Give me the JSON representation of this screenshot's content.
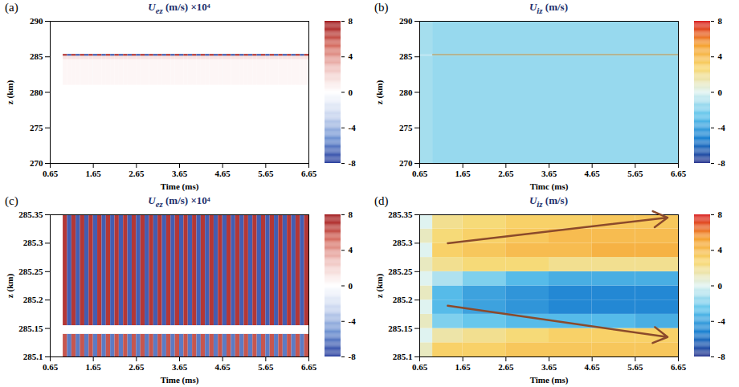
{
  "chart_data": [
    {
      "type": "heatmap",
      "panel_label": "(a)",
      "title": "Uez (m/s) ×10⁴",
      "x_label": "Time (ms)",
      "y_label": "z (km)",
      "xlim": [
        0.65,
        6.65
      ],
      "xticks": [
        0.65,
        1.65,
        2.65,
        3.65,
        4.65,
        5.65,
        6.65
      ],
      "ylim": [
        270,
        290
      ],
      "yticks": [
        270,
        275,
        280,
        285,
        290
      ],
      "color": "bwr",
      "colorbar": {
        "lim": [
          -8,
          8
        ],
        "ticks": [
          -8,
          -4,
          0,
          4,
          8
        ]
      },
      "cells": {
        "x_edges": [
          0.65,
          0.95,
          1.05,
          1.15,
          1.25,
          1.35,
          1.45,
          1.55,
          1.65,
          1.75,
          1.85,
          1.95,
          2.05,
          2.15,
          2.25,
          2.35,
          2.45,
          2.55,
          2.65,
          2.75,
          2.85,
          2.95,
          3.05,
          3.15,
          3.25,
          3.35,
          3.45,
          3.55,
          3.65,
          3.75,
          3.85,
          3.95,
          4.05,
          4.15,
          4.25,
          4.35,
          4.45,
          4.55,
          4.65,
          4.75,
          4.85,
          4.95,
          5.05,
          5.15,
          5.25,
          5.35,
          5.45,
          5.55,
          5.65,
          5.75,
          5.85,
          5.95,
          6.05,
          6.15,
          6.25,
          6.35,
          6.45,
          6.55,
          6.65
        ],
        "y_edges": [
          281,
          284.6,
          285.1,
          285.35
        ],
        "values": [
          [
            0,
            0.4,
            0.4,
            0.4,
            0.4,
            0.4,
            0.4,
            0.4,
            0.4,
            0.4,
            0.4,
            0.4,
            0.4,
            0.4,
            0.4,
            0.4,
            0.4,
            0.4,
            0.4,
            0.4,
            0.4,
            0.4,
            0.4,
            0.4,
            0.4,
            0.4,
            0.4,
            0.4,
            0.4,
            0.4,
            0.4,
            0.4,
            0.4,
            0.4,
            0.4,
            0.4,
            0.4,
            0.4,
            0.4,
            0.4,
            0.4,
            0.4,
            0.4,
            0.4,
            0.4,
            0.4,
            0.4,
            0.4,
            0.4,
            0.4,
            0.4,
            0.4,
            0.4,
            0.4,
            0.4,
            0.4,
            0.4,
            0.4
          ],
          [
            0,
            1.2,
            1.2,
            1.2,
            1.2,
            1.2,
            1.2,
            1.2,
            1.2,
            1.2,
            1.2,
            1.2,
            1.2,
            1.2,
            1.2,
            1.2,
            1.2,
            1.2,
            1.2,
            1.2,
            1.2,
            1.2,
            1.2,
            1.2,
            1.2,
            1.2,
            1.2,
            1.2,
            1.2,
            1.2,
            1.2,
            1.2,
            1.2,
            1.2,
            1.2,
            1.2,
            1.2,
            1.2,
            1.2,
            1.2,
            1.2,
            1.2,
            1.2,
            1.2,
            1.2,
            1.2,
            1.2,
            1.2,
            1.2,
            1.2,
            1.2,
            1.2,
            1.2,
            1.2,
            1.2,
            1.2,
            1.2,
            1.2
          ],
          [
            0,
            7,
            -7,
            7,
            -7,
            7,
            -7,
            7,
            -7,
            7,
            -7,
            7,
            -7,
            7,
            -7,
            7,
            -7,
            7,
            -7,
            7,
            -7,
            7,
            -7,
            7,
            -7,
            7,
            -7,
            7,
            -7,
            7,
            -7,
            7,
            -7,
            7,
            -7,
            7,
            -7,
            7,
            -7,
            7,
            -7,
            7,
            -7,
            7,
            -7,
            7,
            -7,
            7,
            -7,
            7,
            -7,
            7,
            -7,
            7,
            -7,
            7,
            -7,
            7
          ]
        ]
      }
    },
    {
      "type": "heatmap",
      "panel_label": "(b)",
      "title": "Uiz (m/s)",
      "x_label": "Timc (ms)",
      "y_label": "z (km)",
      "xlim": [
        0.65,
        6.65
      ],
      "xticks": [
        0.65,
        1.65,
        2.65,
        3.65,
        4.65,
        5.65,
        6.65
      ],
      "ylim": [
        270,
        290
      ],
      "yticks": [
        270,
        275,
        280,
        285,
        290
      ],
      "color": "jet",
      "colorbar": {
        "lim": [
          -8,
          8
        ],
        "ticks": [
          -8,
          -4,
          0,
          4,
          8
        ]
      },
      "cells": {
        "x_edges": [
          0.65,
          0.95,
          6.65
        ],
        "y_edges": [
          270,
          285.1,
          285.15,
          285.25,
          285.35,
          290
        ],
        "values": [
          [
            -1.2,
            -1.5
          ],
          [
            -1,
            3
          ],
          [
            -1,
            -4
          ],
          [
            -1,
            5
          ],
          [
            -1.2,
            -1.5
          ]
        ]
      }
    },
    {
      "type": "heatmap",
      "panel_label": "(c)",
      "title": "Uez (m/s) ×10⁴",
      "x_label": "Time (ms)",
      "y_label": "z (km)",
      "xlim": [
        0.65,
        6.65
      ],
      "xticks": [
        0.65,
        1.65,
        2.65,
        3.65,
        4.65,
        5.65,
        6.65
      ],
      "ylim": [
        285.1,
        285.35
      ],
      "yticks": [
        285.1,
        285.15,
        285.2,
        285.25,
        285.3,
        285.35
      ],
      "color": "bwr",
      "colorbar": {
        "lim": [
          -8,
          8
        ],
        "ticks": [
          -8,
          -4,
          0,
          4,
          8
        ]
      },
      "cells": {
        "x_edges": [
          0.65,
          0.95,
          1.05,
          1.15,
          1.25,
          1.35,
          1.45,
          1.55,
          1.65,
          1.75,
          1.85,
          1.95,
          2.05,
          2.15,
          2.25,
          2.35,
          2.45,
          2.55,
          2.65,
          2.75,
          2.85,
          2.95,
          3.05,
          3.15,
          3.25,
          3.35,
          3.45,
          3.55,
          3.65,
          3.75,
          3.85,
          3.95,
          4.05,
          4.15,
          4.25,
          4.35,
          4.45,
          4.55,
          4.65,
          4.75,
          4.85,
          4.95,
          5.05,
          5.15,
          5.25,
          5.35,
          5.45,
          5.55,
          5.65,
          5.75,
          5.85,
          5.95,
          6.05,
          6.15,
          6.25,
          6.35,
          6.45,
          6.55,
          6.65
        ],
        "y_edges": [
          285.1,
          285.14,
          285.155,
          285.35
        ],
        "values": [
          [
            0,
            6,
            -6,
            6,
            -6,
            6,
            -6,
            6,
            -6,
            6,
            -6,
            6,
            -6,
            6,
            -6,
            6,
            -6,
            6,
            -6,
            6,
            -6,
            6,
            -6,
            6,
            -6,
            6,
            -6,
            6,
            -6,
            6,
            -6,
            6,
            -6,
            6,
            -6,
            6,
            -6,
            6,
            -6,
            6,
            -6,
            6,
            -6,
            6,
            -6,
            6,
            -6,
            6,
            -6,
            6,
            -6,
            6,
            -6,
            6,
            -6,
            6,
            -6,
            6
          ],
          [
            0,
            0,
            0,
            0,
            0,
            0,
            0,
            0,
            0,
            0,
            0,
            0,
            0,
            0,
            0,
            0,
            0,
            0,
            0,
            0,
            0,
            0,
            0,
            0,
            0,
            0,
            0,
            0,
            0,
            0,
            0,
            0,
            0,
            0,
            0,
            0,
            0,
            0,
            0,
            0,
            0,
            0,
            0,
            0,
            0,
            0,
            0,
            0,
            0,
            0,
            0,
            0,
            0,
            0,
            0,
            0,
            0,
            0
          ],
          [
            0,
            7,
            -7,
            7,
            -7,
            7,
            -7,
            7,
            -7,
            7,
            -7,
            7,
            -7,
            7,
            -7,
            7,
            -7,
            7,
            -7,
            7,
            -7,
            7,
            -7,
            7,
            -7,
            7,
            -7,
            7,
            -7,
            7,
            -7,
            7,
            -7,
            7,
            -7,
            7,
            -7,
            7,
            -7,
            7,
            -7,
            7,
            -7,
            7,
            -7,
            7,
            -7,
            7,
            -7,
            7,
            -7,
            7,
            -7,
            7,
            -7,
            7,
            -7,
            7
          ]
        ]
      }
    },
    {
      "type": "heatmap",
      "panel_label": "(d)",
      "title": "Uiz (m/s)",
      "x_label": "Time (ms)",
      "y_label": "z (km)",
      "xlim": [
        0.65,
        6.65
      ],
      "xticks": [
        0.65,
        1.65,
        2.65,
        3.65,
        4.65,
        5.65,
        6.65
      ],
      "ylim": [
        285.1,
        285.35
      ],
      "yticks": [
        285.1,
        285.15,
        285.2,
        285.25,
        285.3,
        285.35
      ],
      "color": "jet",
      "colorbar": {
        "lim": [
          -8,
          8
        ],
        "ticks": [
          -8,
          -4,
          0,
          4,
          8
        ]
      },
      "cells": {
        "x_edges": [
          0.65,
          0.95,
          1.65,
          2.65,
          3.65,
          4.65,
          5.65,
          6.65
        ],
        "y_edges": [
          285.1,
          285.125,
          285.15,
          285.175,
          285.2,
          285.225,
          285.25,
          285.275,
          285.3,
          285.325,
          285.35
        ],
        "values": [
          [
            1,
            3,
            3,
            3.5,
            3.5,
            3.5,
            3.5
          ],
          [
            0,
            1.5,
            2,
            2.5,
            3,
            3,
            3
          ],
          [
            1,
            -2,
            -2.5,
            -3,
            -3,
            -3,
            -3.5
          ],
          [
            0,
            -3,
            -4,
            -4.5,
            -5,
            -5,
            -5
          ],
          [
            1,
            -3,
            -4,
            -4.5,
            -5,
            -5,
            -5
          ],
          [
            0,
            -1,
            -2,
            -3,
            -3.5,
            -3.5,
            -3.5
          ],
          [
            1,
            2,
            2.5,
            2.5,
            2,
            2,
            2
          ],
          [
            0,
            3,
            3.5,
            4,
            4,
            4.5,
            4.5
          ],
          [
            1,
            2.5,
            3,
            3.5,
            4,
            4,
            4
          ],
          [
            0,
            2,
            2.5,
            3,
            3,
            3.5,
            3.5
          ]
        ]
      },
      "annotations": [
        {
          "type": "arrow",
          "x": [
            1.3,
            6.4
          ],
          "y": [
            285.3,
            285.345
          ]
        },
        {
          "type": "arrow",
          "x": [
            1.3,
            6.4
          ],
          "y": [
            285.19,
            285.135
          ]
        }
      ]
    }
  ]
}
